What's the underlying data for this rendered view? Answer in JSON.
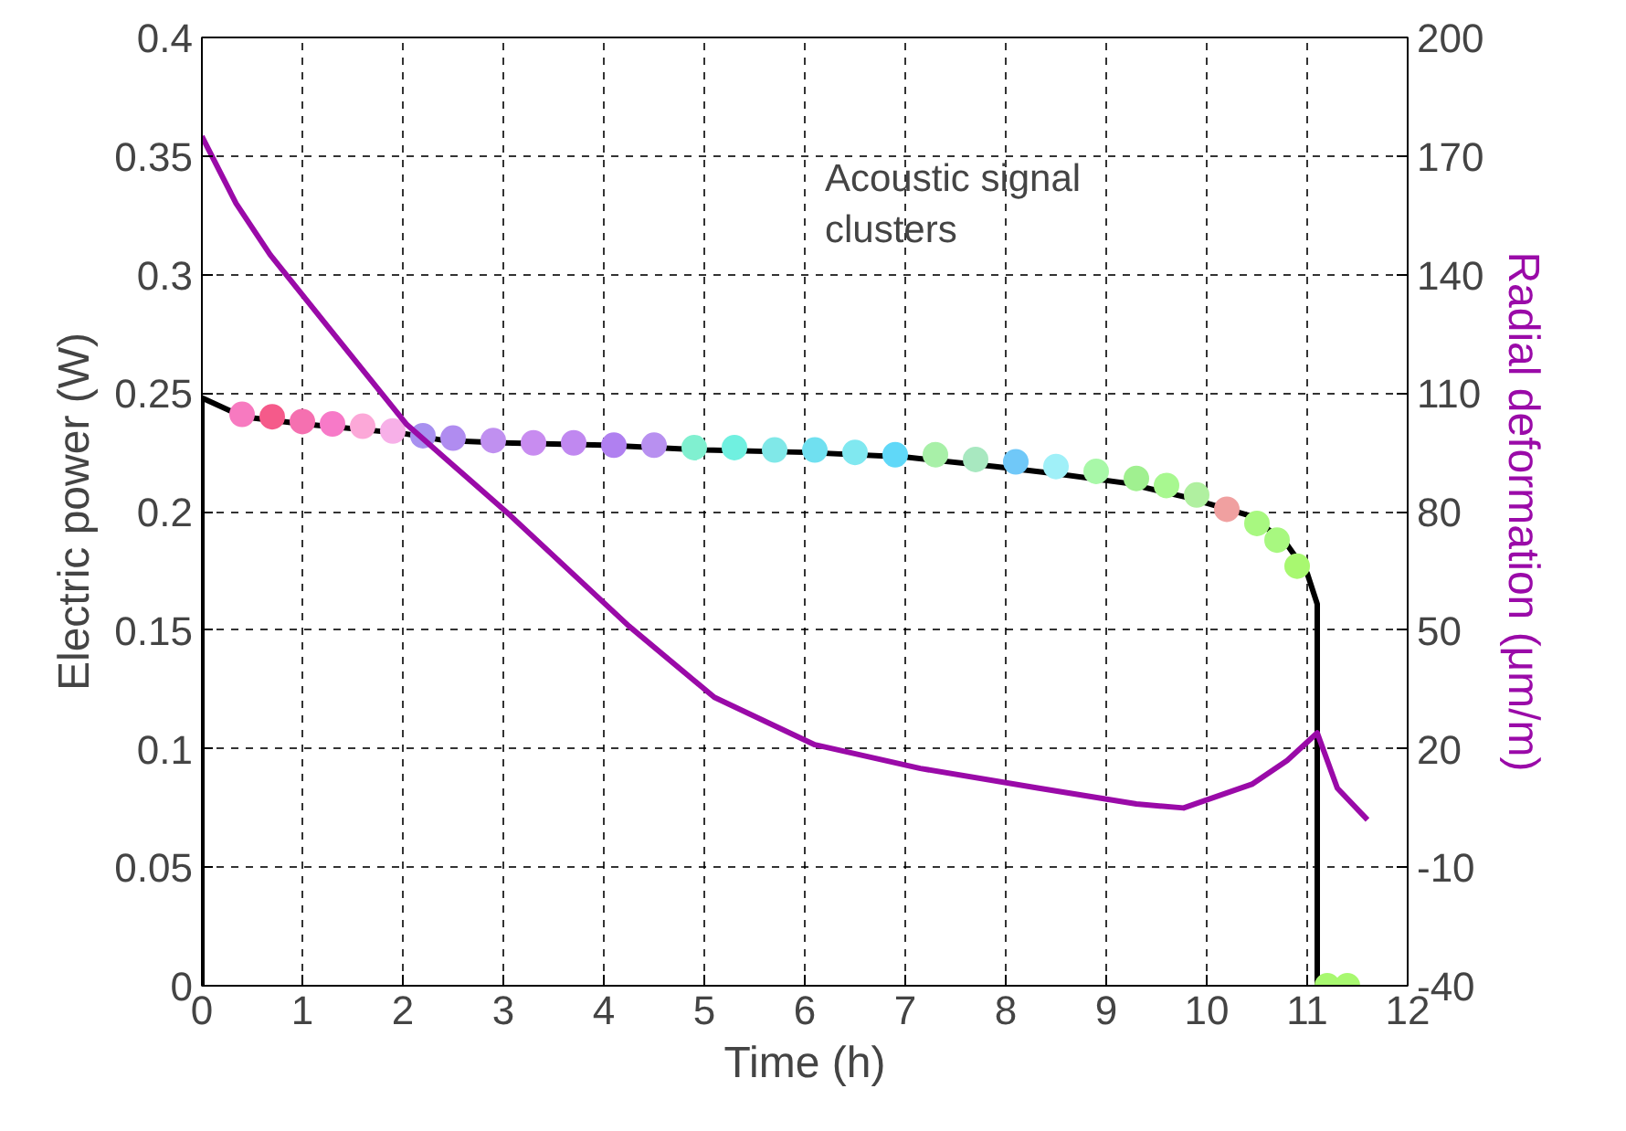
{
  "chart_data": {
    "type": "line",
    "xlabel": "Time (h)",
    "ylabel": "Electric power (W)",
    "y2label": "Radial deformation (μm/m)",
    "xlim": [
      0,
      12
    ],
    "xticks": [
      0,
      1,
      2,
      3,
      4,
      5,
      6,
      7,
      8,
      9,
      10,
      11,
      12
    ],
    "ylim": [
      0,
      0.4
    ],
    "yticks": [
      0,
      0.05,
      0.1,
      0.15,
      0.2,
      0.25,
      0.3,
      0.35,
      0.4
    ],
    "y2lim": [
      -40,
      200
    ],
    "y2ticks": [
      -40,
      -10,
      20,
      50,
      80,
      110,
      140,
      170,
      200
    ],
    "grid": true,
    "annotations": [
      "Acoustic signal clusters"
    ],
    "series": [
      {
        "color": "#000000",
        "x": [
          0,
          0,
          0.05,
          0.41,
          1,
          2,
          2.41,
          3,
          4,
          5,
          6,
          7,
          7.9,
          8.5,
          9.2,
          9.8,
          10.45,
          10.8,
          11.0,
          11.1,
          11.1,
          11.5
        ],
        "values": [
          0,
          0.248,
          0.247,
          0.24,
          0.237,
          0.233,
          0.23,
          0.229,
          0.228,
          0.226,
          0.225,
          0.223,
          0.219,
          0.216,
          0.212,
          0.206,
          0.198,
          0.186,
          0.174,
          0.161,
          0,
          0
        ]
      },
      {
        "type": "scatter",
        "x": [
          0.4,
          0.7,
          1.0,
          1.3,
          1.6,
          1.9,
          2.2,
          2.5,
          2.9,
          3.3,
          3.7,
          4.1,
          4.5,
          4.9,
          5.3,
          5.7,
          6.1,
          6.5,
          6.9,
          7.3,
          7.7,
          8.1,
          8.5,
          8.9,
          9.3,
          9.6,
          9.9,
          10.2,
          10.5,
          10.7,
          10.9,
          11.2,
          11.4
        ],
        "values": [
          0.241,
          0.24,
          0.238,
          0.237,
          0.236,
          0.234,
          0.232,
          0.231,
          0.23,
          0.229,
          0.229,
          0.228,
          0.228,
          0.227,
          0.227,
          0.226,
          0.226,
          0.225,
          0.224,
          0.224,
          0.222,
          0.221,
          0.219,
          0.217,
          0.214,
          0.211,
          0.207,
          0.201,
          0.195,
          0.188,
          0.177,
          0,
          0
        ],
        "colors": [
          "#f77ac0",
          "#f55a8a",
          "#f570b0",
          "#f77ac8",
          "#fca8d8",
          "#f7b0e8",
          "#a890f0",
          "#b08cf0",
          "#c090f0",
          "#c88cf0",
          "#c088f0",
          "#b080f0",
          "#b890f0",
          "#80f0d0",
          "#70f0e0",
          "#80e8e8",
          "#70e0f0",
          "#80e8f0",
          "#60d8f8",
          "#a8f0a8",
          "#a8e8c0",
          "#70c8f8",
          "#a0f0f8",
          "#a8f8a8",
          "#a0f090",
          "#a8f890",
          "#b0f0a0",
          "#f0a0a0",
          "#a8f880",
          "#a8f880",
          "#a8f870",
          "#a8f870",
          "#a8f870"
        ]
      },
      {
        "axis": "y2",
        "color": "#9a0aa8",
        "x": [
          0,
          0.04,
          0.34,
          0.68,
          1.28,
          2.04,
          3.07,
          4.25,
          5.1,
          6.1,
          7.15,
          8.33,
          9.3,
          9.77,
          10.45,
          10.8,
          11.1,
          11.3,
          11.6
        ],
        "values": [
          175,
          173,
          158,
          145,
          126,
          102,
          79,
          51,
          33,
          21,
          15,
          10,
          6,
          5,
          11,
          17,
          24,
          10,
          2
        ]
      }
    ]
  }
}
